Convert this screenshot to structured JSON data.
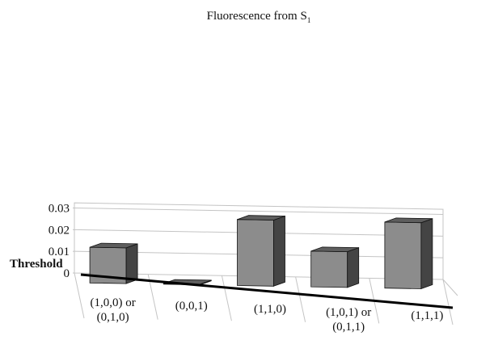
{
  "chart_data": {
    "type": "bar",
    "title": "Fluorescence from S",
    "title_subscript": "1",
    "threshold_label": "Threshold",
    "categories": [
      [
        "(1,0,0) or",
        "(0,1,0)"
      ],
      [
        "(0,0,1)"
      ],
      [
        "(1,1,0)"
      ],
      [
        "(1,0,1) or",
        "(0,1,1)"
      ],
      [
        "(1,1,1)"
      ]
    ],
    "values": [
      0.0165,
      0.0003,
      0.0305,
      0.0165,
      0.0305
    ],
    "y_ticks": [
      "0",
      "0.01",
      "0.02",
      "0.03"
    ],
    "y_tick_values": [
      0,
      0.01,
      0.02,
      0.03
    ],
    "ylim": [
      0,
      0.03
    ],
    "grid": true,
    "colors": {
      "bar_front": "#8c8c8c",
      "bar_top": "#5e5e5e",
      "bar_side": "#444444",
      "bar_edge": "#111111",
      "grid": "#c4c4c4",
      "baseline": "#000000"
    }
  }
}
